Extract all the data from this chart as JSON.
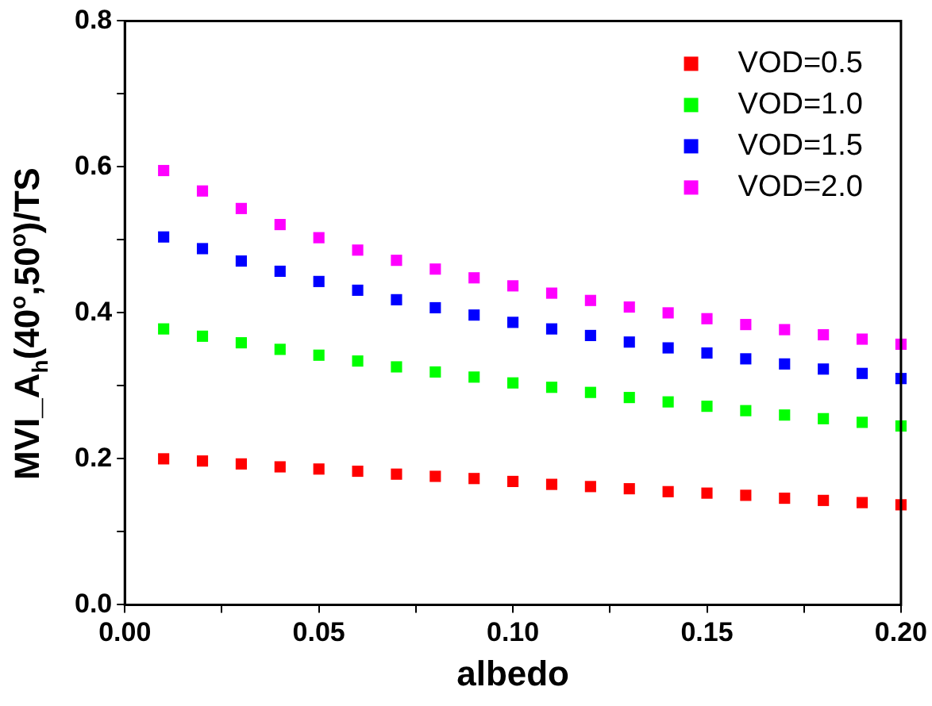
{
  "chart_data": {
    "type": "scatter",
    "xlabel": "albedo",
    "ylabel": "MVI_A$_{h}$(40$^{o}$,50$^{o}$)/TS",
    "x": [
      0.01,
      0.02,
      0.03,
      0.04,
      0.05,
      0.06,
      0.07,
      0.08,
      0.09,
      0.1,
      0.11,
      0.12,
      0.13,
      0.14,
      0.15,
      0.16,
      0.17,
      0.18,
      0.19,
      0.2
    ],
    "series": [
      {
        "name": "VOD=0.5",
        "color": "#ff0000",
        "values": [
          0.2,
          0.197,
          0.193,
          0.189,
          0.186,
          0.183,
          0.179,
          0.176,
          0.173,
          0.169,
          0.165,
          0.162,
          0.159,
          0.155,
          0.153,
          0.15,
          0.146,
          0.143,
          0.14,
          0.137
        ]
      },
      {
        "name": "VOD=1.0",
        "color": "#00ff00",
        "values": [
          0.378,
          0.368,
          0.359,
          0.35,
          0.342,
          0.334,
          0.326,
          0.319,
          0.312,
          0.304,
          0.298,
          0.291,
          0.284,
          0.278,
          0.272,
          0.266,
          0.26,
          0.255,
          0.25,
          0.245
        ]
      },
      {
        "name": "VOD=1.5",
        "color": "#0000ff",
        "values": [
          0.504,
          0.488,
          0.471,
          0.457,
          0.443,
          0.431,
          0.418,
          0.407,
          0.397,
          0.387,
          0.378,
          0.369,
          0.36,
          0.352,
          0.345,
          0.337,
          0.33,
          0.323,
          0.317,
          0.31
        ]
      },
      {
        "name": "VOD=2.0",
        "color": "#ff00ff",
        "values": [
          0.595,
          0.567,
          0.543,
          0.521,
          0.503,
          0.486,
          0.472,
          0.46,
          0.448,
          0.437,
          0.427,
          0.417,
          0.408,
          0.4,
          0.392,
          0.384,
          0.377,
          0.37,
          0.364,
          0.357
        ]
      }
    ],
    "xlim": [
      0,
      0.2
    ],
    "xticks": [
      {
        "value": 0,
        "label": "0.00"
      },
      {
        "value": 0.025,
        "label": null
      },
      {
        "value": 0.05,
        "label": "0.05"
      },
      {
        "value": 0.075,
        "label": null
      },
      {
        "value": 0.1,
        "label": "0.10"
      },
      {
        "value": 0.125,
        "label": null
      },
      {
        "value": 0.15,
        "label": "0.15"
      },
      {
        "value": 0.175,
        "label": null
      },
      {
        "value": 0.2,
        "label": "0.20"
      }
    ],
    "ylim": [
      0,
      0.8
    ],
    "yticks": [
      {
        "value": 0,
        "label": "0.0"
      },
      {
        "value": 0.1,
        "label": null
      },
      {
        "value": 0.2,
        "label": "0.2"
      },
      {
        "value": 0.3,
        "label": null
      },
      {
        "value": 0.4,
        "label": "0.4"
      },
      {
        "value": 0.5,
        "label": null
      },
      {
        "value": 0.6,
        "label": "0.6"
      },
      {
        "value": 0.7,
        "label": null
      },
      {
        "value": 0.8,
        "label": "0.8"
      }
    ],
    "grid": false,
    "legend": "top right",
    "marker": "square"
  }
}
